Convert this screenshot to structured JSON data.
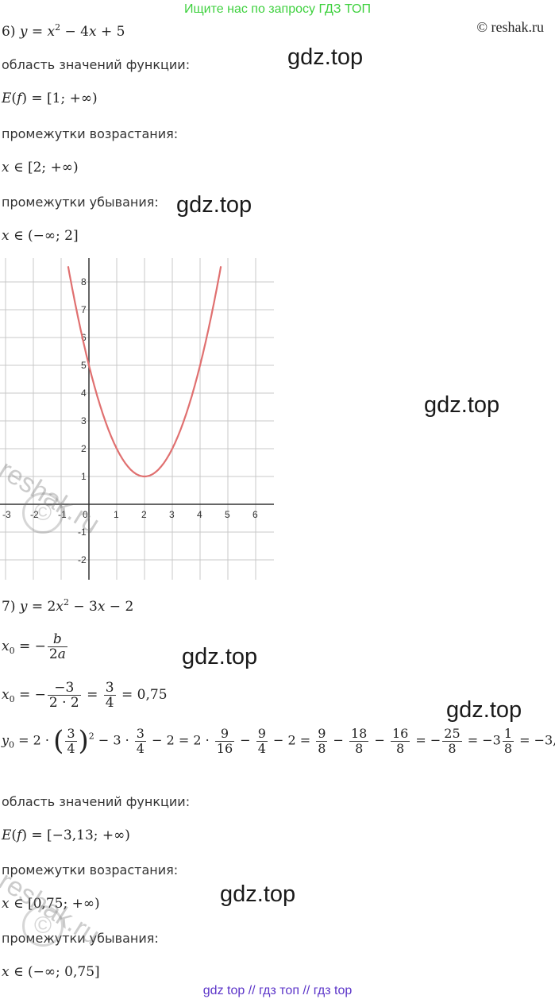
{
  "banner": "Ищите нас по запросу ГДЗ ТОП",
  "copyright": "© reshak.ru",
  "watermark": "gdz.top",
  "reshak_watermark": "reshak.ru",
  "footer": "gdz top  //  гдз топ  //  гдз top",
  "part6": {
    "label": "6)",
    "range_title": "область значений функции:",
    "increase_title": "промежутки возрастания:",
    "decrease_title": "промежутки убывания:"
  },
  "part7": {
    "label": "7)",
    "range_title": "область значений функции:",
    "increase_title": "промежутки возрастания:",
    "decrease_title": "промежутки убывания:"
  },
  "graph": {
    "x_ticks": [
      "-3",
      "-2",
      "-1",
      "0",
      "1",
      "2",
      "3",
      "4",
      "5",
      "6"
    ],
    "y_ticks": [
      "8",
      "7",
      "6",
      "5",
      "4",
      "3",
      "2",
      "1",
      "-1",
      "-2"
    ]
  },
  "chart_data": {
    "type": "line",
    "function": "y = x^2 - 4x + 5",
    "xlim": [
      -3.3,
      6.6
    ],
    "ylim": [
      -2.8,
      8.8
    ],
    "grid": true,
    "series": [
      {
        "x": [
          -0.6,
          0,
          1,
          2,
          3,
          4,
          4.6
        ],
        "y": [
          7.76,
          5,
          2,
          1,
          2,
          5,
          7.76
        ]
      }
    ]
  },
  "colors": {
    "curve": "#e07070",
    "banner": "#3fd13f",
    "footer": "#5c35c9"
  }
}
